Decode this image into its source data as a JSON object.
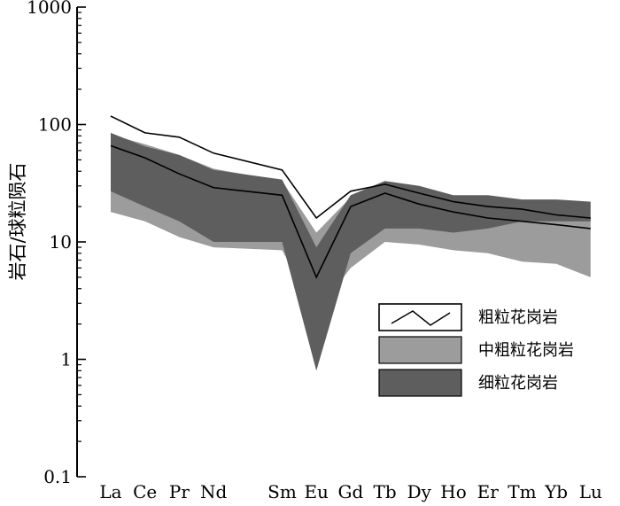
{
  "chart_data": {
    "type": "area",
    "title": "",
    "xlabel": "",
    "ylabel": "岩石/球粒陨石",
    "yscale": "log",
    "ylim": [
      0.1,
      1000
    ],
    "y_ticks": [
      "0.1",
      "1",
      "10",
      "100",
      "1000"
    ],
    "categories": [
      "La",
      "Ce",
      "Pr",
      "Nd",
      "Sm",
      "Eu",
      "Gd",
      "Tb",
      "Dy",
      "Ho",
      "Er",
      "Tm",
      "Yb",
      "Lu"
    ],
    "category_positions": [
      0,
      1,
      2,
      3,
      5,
      6,
      7,
      8,
      9,
      10,
      11,
      12,
      13,
      14
    ],
    "series": [
      {
        "name": "粗粒花岗岩",
        "kind": "lines",
        "color": "#000000",
        "upper": [
          118,
          85,
          78,
          57,
          41,
          16,
          27,
          31,
          26,
          22,
          20,
          19,
          17,
          16
        ],
        "lower": [
          66,
          52,
          38,
          29,
          25,
          5,
          20,
          26,
          21,
          18,
          16,
          15,
          14,
          13
        ]
      },
      {
        "name": "中粗粒花岗岩",
        "kind": "band",
        "color": "#9c9c9c",
        "upper": [
          82,
          68,
          55,
          42,
          33,
          12,
          24,
          31,
          28,
          24,
          22,
          20,
          18,
          17
        ],
        "lower": [
          18,
          15,
          11,
          9,
          8.5,
          2.5,
          6,
          10,
          9.5,
          8.5,
          8,
          6.8,
          6.5,
          5
        ]
      },
      {
        "name": "细粒花岗岩",
        "kind": "band",
        "color": "#5e5e5e",
        "upper": [
          85,
          65,
          55,
          41,
          34,
          9,
          25,
          33,
          30,
          25,
          25,
          23,
          23,
          22
        ],
        "lower": [
          27,
          20,
          15,
          10,
          10,
          0.8,
          8,
          13,
          13,
          12,
          13,
          15,
          15,
          15
        ]
      }
    ],
    "legend": {
      "placement": "right",
      "entries": [
        "粗粒花岗岩",
        "中粗粒花岗岩",
        "细粒花岗岩"
      ]
    },
    "grid": false
  }
}
